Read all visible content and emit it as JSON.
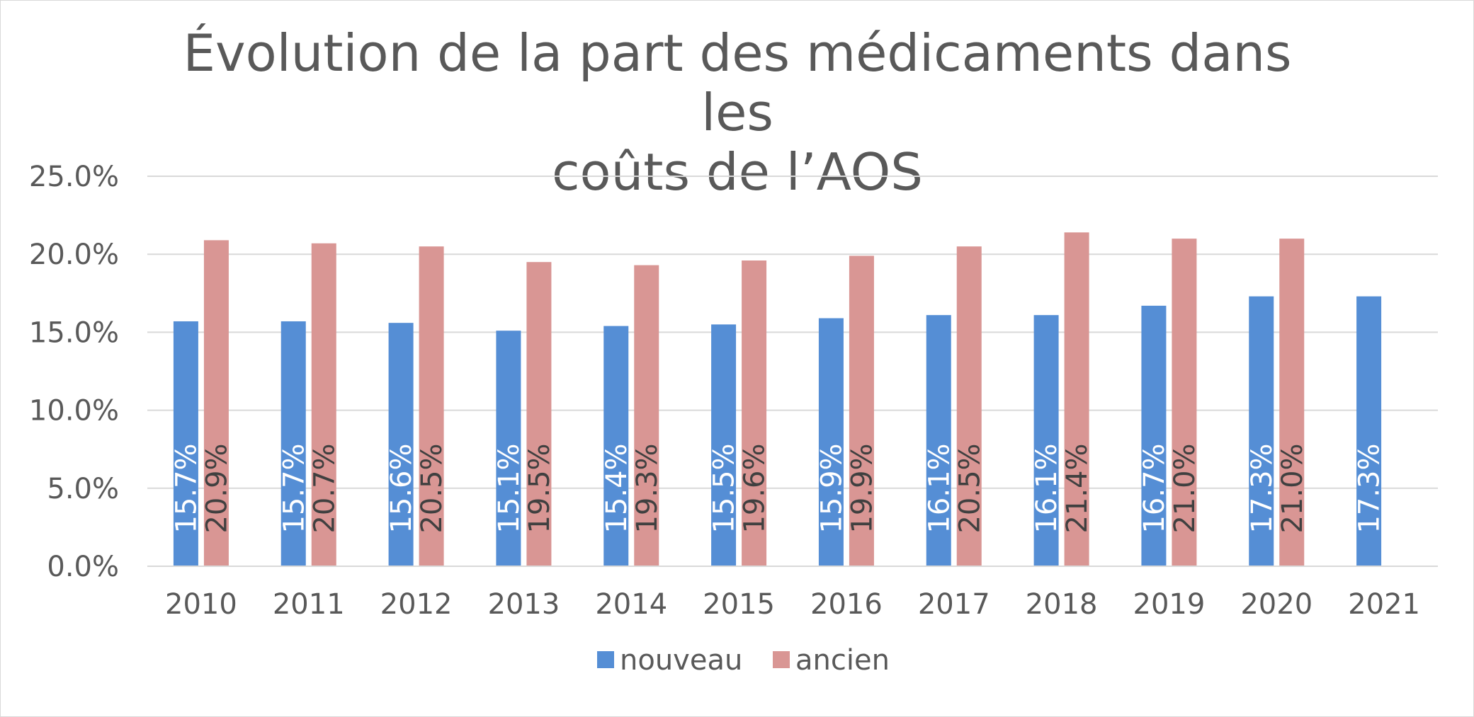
{
  "chart_data": {
    "type": "bar",
    "title": "Évolution de la part des médicaments dans les coûts de l’AOS",
    "title_lines": [
      "Évolution de la part des médicaments dans les",
      "coûts de l’AOS"
    ],
    "categories": [
      "2010",
      "2011",
      "2012",
      "2013",
      "2014",
      "2015",
      "2016",
      "2017",
      "2018",
      "2019",
      "2020",
      "2021"
    ],
    "series": [
      {
        "name": "nouveau",
        "color": "#558ed5",
        "label_color": "#ffffff",
        "values": [
          15.7,
          15.7,
          15.6,
          15.1,
          15.4,
          15.5,
          15.9,
          16.1,
          16.1,
          16.7,
          17.3,
          17.3
        ],
        "labels": [
          "15.7%",
          "15.7%",
          "15.6%",
          "15.1%",
          "15.4%",
          "15.5%",
          "15.9%",
          "16.1%",
          "16.1%",
          "16.7%",
          "17.3%",
          "17.3%"
        ]
      },
      {
        "name": "ancien",
        "color": "#d99694",
        "label_color": "#404040",
        "values": [
          20.9,
          20.7,
          20.5,
          19.5,
          19.3,
          19.6,
          19.9,
          20.5,
          21.4,
          21.0,
          21.0,
          null
        ],
        "labels": [
          "20.9%",
          "20.7%",
          "20.5%",
          "19.5%",
          "19.3%",
          "19.6%",
          "19.9%",
          "20.5%",
          "21.4%",
          "21.0%",
          "21.0%",
          ""
        ]
      }
    ],
    "xlabel": "",
    "ylabel": "",
    "ylim": [
      0,
      25
    ],
    "yticks": [
      0,
      5,
      10,
      15,
      20,
      25
    ],
    "ytick_labels": [
      "0.0%",
      "5.0%",
      "10.0%",
      "15.0%",
      "20.0%",
      "25.0%"
    ],
    "grid": true,
    "grid_color": "#d9d9d9",
    "legend_position": "bottom"
  }
}
